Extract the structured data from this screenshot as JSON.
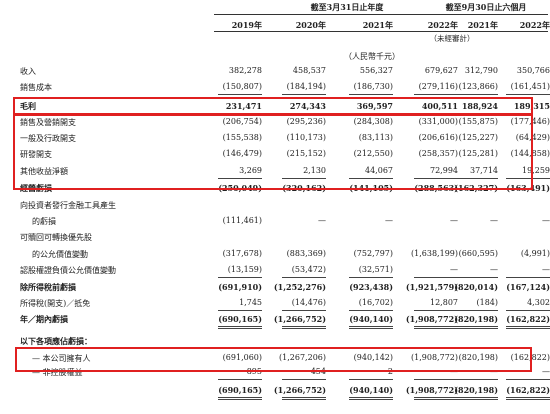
{
  "header": {
    "group1": "截至3月31日止年度",
    "group2": "截至9月30日止六個月",
    "years": [
      "2019年",
      "2020年",
      "2021年",
      "2022年",
      "2021年",
      "2022年"
    ],
    "unaudited": "（未經審計）",
    "unit": "（人民幣千元）"
  },
  "rows": [
    {
      "label": "收入",
      "values": [
        "382,278",
        "458,537",
        "556,327",
        "679,627",
        "312,790",
        "350,766"
      ]
    },
    {
      "label": "銷售成本",
      "values": [
        "(150,807)",
        "(184,194)",
        "(186,730)",
        "(279,116)",
        "(123,866)",
        "(161,451)"
      ]
    },
    {
      "label": "毛利",
      "values": [
        "231,471",
        "274,343",
        "369,597",
        "400,511",
        "188,924",
        "189,315"
      ],
      "bold": true
    },
    {
      "label": "銷售及營銷開支",
      "values": [
        "(206,754)",
        "(295,236)",
        "(284,308)",
        "(331,000)",
        "(155,875)",
        "(177,446)"
      ]
    },
    {
      "label": "一般及行政開支",
      "values": [
        "(155,538)",
        "(110,173)",
        "(83,113)",
        "(206,616)",
        "(125,227)",
        "(64,429)"
      ]
    },
    {
      "label": "研發開支",
      "values": [
        "(146,479)",
        "(215,152)",
        "(212,550)",
        "(258,357)",
        "(125,281)",
        "(144,858)"
      ]
    },
    {
      "label": "其他收益淨額",
      "values": [
        "3,269",
        "2,130",
        "44,067",
        "72,994",
        "37,714",
        "19,259"
      ]
    },
    {
      "label": "經營虧損",
      "values": [
        "(250,049)",
        "(320,162)",
        "(141,105)",
        "(288,563)",
        "(162,327)",
        "(163,491)"
      ],
      "bold": true
    },
    {
      "label": "向投資者發行金融工具產生",
      "values": [
        "",
        "",
        "",
        "",
        "",
        ""
      ]
    },
    {
      "label": "的虧損",
      "values": [
        "(111,461)",
        "—",
        "—",
        "—",
        "—",
        "—"
      ],
      "indent": true
    },
    {
      "label": "可贖回可轉換優先股",
      "values": [
        "",
        "",
        "",
        "",
        "",
        ""
      ]
    },
    {
      "label": "的公允價值變動",
      "values": [
        "(317,678)",
        "(883,369)",
        "(752,797)",
        "(1,638,199)",
        "(660,595)",
        "(4,991)"
      ],
      "indent": true
    },
    {
      "label": "認股權證負債公允價值變動",
      "values": [
        "(13,159)",
        "(53,472)",
        "(32,571)",
        "—",
        "—",
        "—"
      ]
    },
    {
      "label": "除所得稅前虧損",
      "values": [
        "(691,910)",
        "(1,252,276)",
        "(923,438)",
        "(1,921,579)",
        "(820,014)",
        "(167,124)"
      ],
      "bold": true
    },
    {
      "label": "所得稅(開支)／抵免",
      "values": [
        "1,745",
        "(14,476)",
        "(16,702)",
        "12,807",
        "(184)",
        "4,302"
      ]
    },
    {
      "label": "年／期內虧損",
      "values": [
        "(690,165)",
        "(1,266,752)",
        "(940,140)",
        "(1,908,772)",
        "(820,198)",
        "(162,822)"
      ],
      "bold": true
    },
    {
      "label": "以下各項應佔虧損：",
      "values": [
        "",
        "",
        "",
        "",
        "",
        ""
      ],
      "bold": true
    },
    {
      "label": "— 本公司擁有人",
      "values": [
        "(691,060)",
        "(1,267,206)",
        "(940,142)",
        "(1,908,772)",
        "(820,198)",
        "(162,822)"
      ],
      "indent": true
    },
    {
      "label": "— 非控股權益",
      "values": [
        "895",
        "454",
        "2",
        "—",
        "—",
        "—"
      ],
      "indent": true
    },
    {
      "label": "",
      "values": [
        "(690,165)",
        "(1,266,752)",
        "(940,140)",
        "(1,908,772)",
        "(820,198)",
        "(162,822)"
      ],
      "bold": true
    }
  ]
}
